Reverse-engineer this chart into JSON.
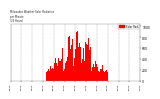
{
  "title": "Milwaukee Weather Solar Radiation\nper Minute\n(24 Hours)",
  "bar_color": "#ff0000",
  "background_color": "#ffffff",
  "plot_background": "#ffffff",
  "grid_color": "#888888",
  "num_minutes": 1440,
  "peak_minute": 740,
  "peak_value": 1000,
  "ylim": [
    0,
    1050
  ],
  "legend_label": "Solar Rad.",
  "legend_color": "#ff0000",
  "yticks": [
    0,
    200,
    400,
    600,
    800,
    1000
  ]
}
